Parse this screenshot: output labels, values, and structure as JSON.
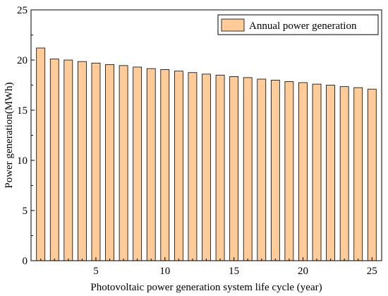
{
  "chart_data": {
    "type": "bar",
    "xlabel": "Photovoltaic power generation system life cycle (year)",
    "ylabel": "Power generation(MWh)",
    "x": [
      1,
      2,
      3,
      4,
      5,
      6,
      7,
      8,
      9,
      10,
      11,
      12,
      13,
      14,
      15,
      16,
      17,
      18,
      19,
      20,
      21,
      22,
      23,
      24,
      25
    ],
    "xlim": [
      0.3,
      25.7
    ],
    "xticks": [
      5,
      10,
      15,
      20,
      25
    ],
    "ylim": [
      0,
      25
    ],
    "yticks": [
      0,
      5,
      10,
      15,
      20,
      25
    ],
    "series": [
      {
        "name": "Annual power generation",
        "color": "#FFCC99",
        "values": [
          21.2,
          20.1,
          20.0,
          19.85,
          19.7,
          19.55,
          19.45,
          19.3,
          19.15,
          19.05,
          18.9,
          18.75,
          18.6,
          18.5,
          18.35,
          18.25,
          18.1,
          18.0,
          17.85,
          17.75,
          17.6,
          17.5,
          17.35,
          17.25,
          17.1
        ]
      }
    ],
    "legend_position": "top-right",
    "grid": false
  }
}
